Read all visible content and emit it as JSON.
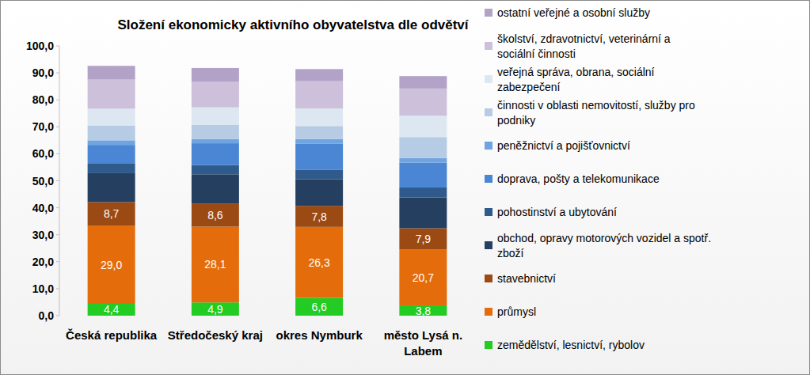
{
  "chart_data": {
    "type": "bar",
    "stacked": true,
    "grid": false,
    "legend": "right",
    "data_labels": true,
    "title": "Složení ekonomicky aktivního obyvatelstva dle odvětví",
    "categories": [
      "Česká republika",
      "Středočeský kraj",
      "okres Nymburk",
      "město Lysá n. Labem"
    ],
    "ylim": [
      0,
      100
    ],
    "yticks": [
      {
        "value": 0,
        "label": "0,0"
      },
      {
        "value": 10,
        "label": "10,0"
      },
      {
        "value": 20,
        "label": "20,0"
      },
      {
        "value": 30,
        "label": "30,0"
      },
      {
        "value": 40,
        "label": "40,0"
      },
      {
        "value": 50,
        "label": "50,0"
      },
      {
        "value": 60,
        "label": "60,0"
      },
      {
        "value": 70,
        "label": "70,0"
      },
      {
        "value": 80,
        "label": "80,0"
      },
      {
        "value": 90,
        "label": "90,0"
      },
      {
        "value": 100,
        "label": "100,0"
      }
    ],
    "series": [
      {
        "name": "zemědělství, lesnictví, rybolov",
        "color": "#22cc22",
        "values": [
          4.4,
          4.9,
          6.6,
          3.8
        ],
        "value_labels": [
          "4,4",
          "4,9",
          "6,6",
          "3,8"
        ]
      },
      {
        "name": "průmysl",
        "color": "#e46c0a",
        "values": [
          29.0,
          28.1,
          26.3,
          20.7
        ],
        "value_labels": [
          "29,0",
          "28,1",
          "26,3",
          "20,7"
        ]
      },
      {
        "name": "stavebnictví",
        "color": "#9c4a14",
        "values": [
          8.7,
          8.6,
          7.8,
          7.9
        ],
        "value_labels": [
          "8,7",
          "8,6",
          "7,8",
          "7,9"
        ]
      },
      {
        "name": "obchod, opravy motorových vozidel a spotř. zboží",
        "color": "#243f60",
        "values": [
          10.7,
          10.8,
          9.9,
          11.4
        ]
      },
      {
        "name": "pohostinství a ubytování",
        "color": "#2f5a8c",
        "values": [
          3.5,
          3.4,
          3.4,
          3.7
        ]
      },
      {
        "name": "doprava, pošty a telekomunikace",
        "color": "#4a86d4",
        "values": [
          7.0,
          8.1,
          9.8,
          9.2
        ]
      },
      {
        "name": "peněžnictví a pojišťovnictví",
        "color": "#6fa4e0",
        "values": [
          1.7,
          1.6,
          1.7,
          1.7
        ]
      },
      {
        "name": "činnosti v oblasti nemovitostí, služby pro podniky",
        "color": "#b6cbe4",
        "values": [
          5.5,
          5.3,
          4.8,
          7.8
        ]
      },
      {
        "name": "veřejná správa, obrana, sociální zabezpečení",
        "color": "#dde7f2",
        "values": [
          6.2,
          6.4,
          6.5,
          7.9
        ]
      },
      {
        "name": "školství, zdravotnictví, veterinární a sociální činnosti",
        "color": "#ccc0da",
        "values": [
          10.8,
          9.6,
          10.1,
          10.1
        ]
      },
      {
        "name": "ostatní veřejné a osobní služby",
        "color": "#b3a2c7",
        "values": [
          5.1,
          5.0,
          4.5,
          4.6
        ]
      }
    ]
  }
}
